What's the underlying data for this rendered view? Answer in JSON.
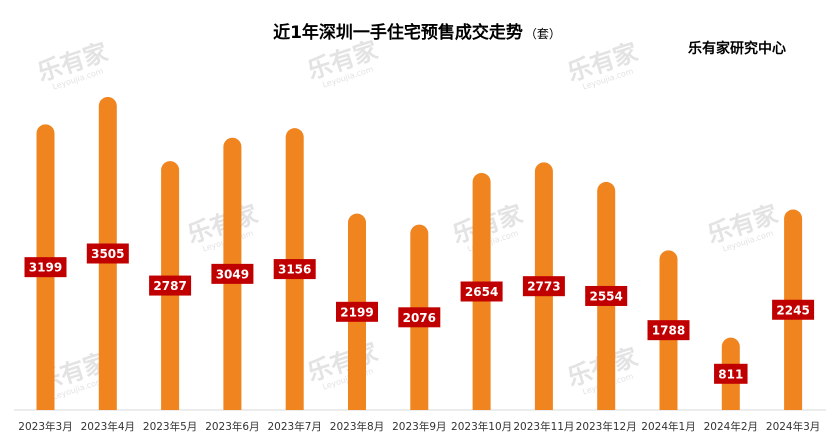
{
  "chart_data": {
    "type": "bar",
    "title": "近1年深圳一手住宅预售成交走势",
    "unit": "（套）",
    "source": "乐有家研究中心",
    "watermark": "乐有家",
    "watermark_sub": "Leyoujia.com",
    "categories": [
      "2023年3月",
      "2023年4月",
      "2023年5月",
      "2023年6月",
      "2023年7月",
      "2023年8月",
      "2023年9月",
      "2023年10月",
      "2023年11月",
      "2023年12月",
      "2024年1月",
      "2024年2月",
      "2024年3月"
    ],
    "values": [
      3199,
      3505,
      2787,
      3049,
      3156,
      2199,
      2076,
      2654,
      2773,
      2554,
      1788,
      811,
      2245
    ],
    "ylim": [
      0,
      3505
    ],
    "grid": false,
    "legend": "none",
    "colors": {
      "bar": "#F0841E",
      "label_bg": "#C00000",
      "label_text": "#FFFFFF",
      "watermark": "#E3E3E3"
    }
  }
}
